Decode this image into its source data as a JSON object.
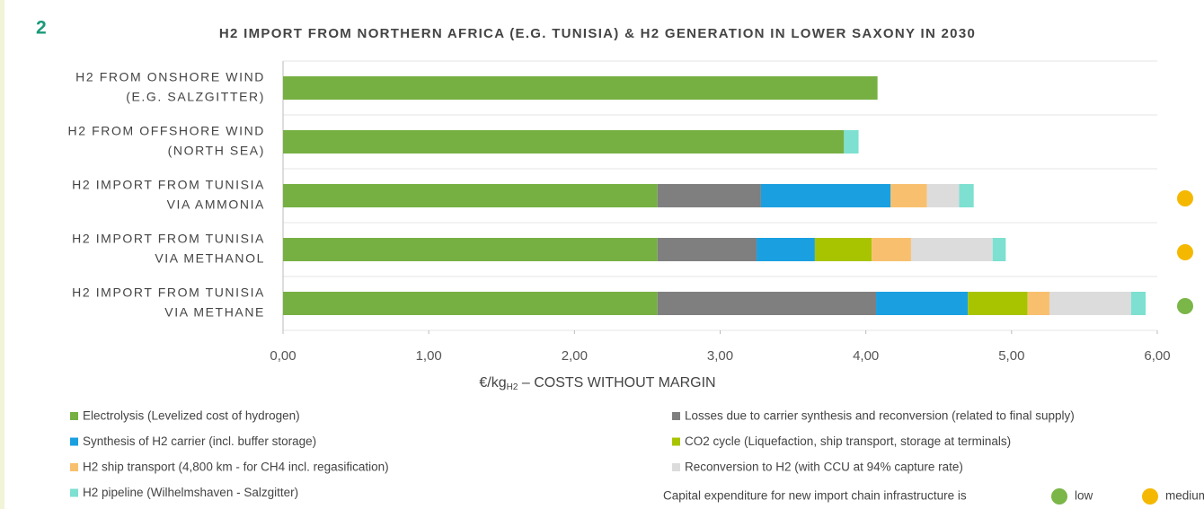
{
  "page_number": "2",
  "chart_data": {
    "type": "stacked-barh",
    "title": "H2 IMPORT FROM NORTHERN AFRICA (E.G. TUNISIA) & H2 GENERATION IN LOWER SAXONY IN 2030",
    "categories": [
      [
        "H2 FROM ONSHORE WIND",
        "(E.G. SALZGITTER)"
      ],
      [
        "H2 FROM OFFSHORE WIND",
        "(NORTH SEA)"
      ],
      [
        "H2 IMPORT FROM TUNISIA",
        "VIA AMMONIA"
      ],
      [
        "H2 IMPORT FROM TUNISIA",
        "VIA METHANOL"
      ],
      [
        "H2 IMPORT FROM TUNISIA",
        "VIA METHANE"
      ]
    ],
    "series": [
      {
        "name": "Electrolysis (Levelized cost of hydrogen)",
        "color": "#76b043",
        "values": [
          4.08,
          3.85,
          2.57,
          2.57,
          2.57
        ]
      },
      {
        "name": "Losses due to carrier synthesis and reconversion (related to final supply)",
        "color": "#7f7f7f",
        "values": [
          null,
          null,
          0.71,
          0.68,
          1.5
        ]
      },
      {
        "name": "Synthesis of H2 carrier (incl. buffer storage)",
        "color": "#1aa0e0",
        "values": [
          null,
          null,
          0.89,
          0.4,
          0.63
        ]
      },
      {
        "name": "CO2 cycle (Liquefaction, ship transport, storage at terminals)",
        "color": "#a8c400",
        "values": [
          null,
          null,
          null,
          0.39,
          0.41
        ]
      },
      {
        "name": "H2 ship transport (4,800 km - for CH4 incl. regasification)",
        "color": "#f8c06e",
        "values": [
          null,
          null,
          0.25,
          0.27,
          0.15
        ]
      },
      {
        "name": "Reconversion to H2 (with CCU at 94% capture rate)",
        "color": "#dcdcdc",
        "values": [
          null,
          null,
          0.22,
          0.56,
          0.56
        ]
      },
      {
        "name": "H2 pipeline (Wilhelmshaven - Salzgitter)",
        "color": "#7de0d0",
        "values": [
          null,
          0.1,
          0.1,
          0.09,
          0.1
        ]
      }
    ],
    "xlim": [
      0,
      6
    ],
    "xticks": [
      {
        "value": 0,
        "label": "0,00"
      },
      {
        "value": 1,
        "label": "1,00"
      },
      {
        "value": 2,
        "label": "2,00"
      },
      {
        "value": 3,
        "label": "3,00"
      },
      {
        "value": 4,
        "label": "4,00"
      },
      {
        "value": 5,
        "label": "5,00"
      },
      {
        "value": 6,
        "label": "6,00"
      }
    ],
    "xlabel": {
      "main": "€/kg",
      "sub": "H2",
      "rest": " – COSTS WITHOUT MARGIN"
    },
    "capex": {
      "label": "Capital expenditure for new import chain infrastructure is",
      "levels": [
        {
          "name": "low",
          "color": "#7ab648"
        },
        {
          "name": "medium",
          "color": "#f5b800"
        }
      ],
      "values": [
        null,
        null,
        1,
        1,
        0
      ]
    }
  }
}
